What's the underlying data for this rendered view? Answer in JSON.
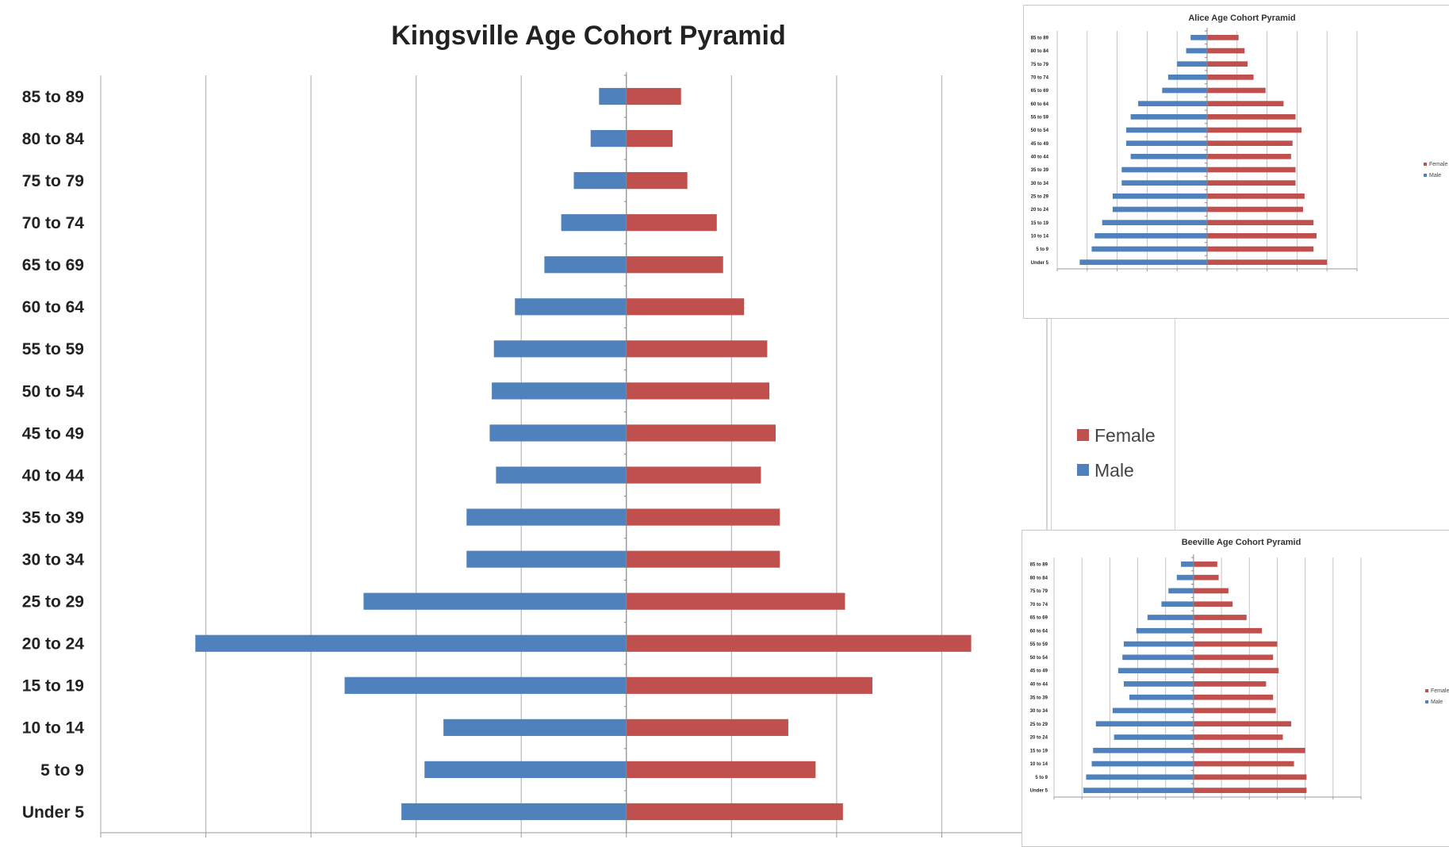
{
  "chart_data": [
    {
      "id": "kingsville",
      "type": "bar",
      "title": "Kingsville Age Cohort Pyramid",
      "categories": [
        "85 to 89",
        "80 to 84",
        "75 to 79",
        "70 to 74",
        "65 to 69",
        "60 to 64",
        "55 to 59",
        "50 to 54",
        "45 to 49",
        "40 to 44",
        "35 to 39",
        "30 to 34",
        "25 to 29",
        "20 to 24",
        "15 to 19",
        "10 to 14",
        "5 to 9",
        "Under 5"
      ],
      "series": [
        {
          "name": "Female",
          "color": "#c0504d",
          "values": [
            2.6,
            2.2,
            2.9,
            4.3,
            4.6,
            5.6,
            6.7,
            6.8,
            7.1,
            6.4,
            7.3,
            7.3,
            10.4,
            16.4,
            11.7,
            7.7,
            9.0,
            10.3
          ]
        },
        {
          "name": "Male",
          "color": "#4f81bd",
          "values": [
            -1.3,
            -1.7,
            -2.5,
            -3.1,
            -3.9,
            -5.3,
            -6.3,
            -6.4,
            -6.5,
            -6.2,
            -7.6,
            -7.6,
            -12.5,
            -20.5,
            -13.4,
            -8.7,
            -9.6,
            -10.7
          ]
        }
      ],
      "xlim": [
        -25,
        20
      ],
      "legend": "right",
      "grid": true
    },
    {
      "id": "alice",
      "type": "bar",
      "title": "Alice Age Cohort Pyramid",
      "categories": [
        "85 to 89",
        "80 to 84",
        "75 to 79",
        "70 to 74",
        "65 to 69",
        "60 to 64",
        "55 to 59",
        "50 to 54",
        "45 to 49",
        "40 to 44",
        "35 to 39",
        "30 to 34",
        "25 to 29",
        "20 to 24",
        "15 to 19",
        "10 to 14",
        "5 to 9",
        "Under 5"
      ],
      "series": [
        {
          "name": "Female",
          "color": "#c0504d",
          "values": [
            2.1,
            2.5,
            2.7,
            3.1,
            3.9,
            5.1,
            5.9,
            6.3,
            5.7,
            5.6,
            5.9,
            5.9,
            6.5,
            6.4,
            7.1,
            7.3,
            7.1,
            8.0
          ]
        },
        {
          "name": "Male",
          "color": "#4f81bd",
          "values": [
            -1.1,
            -1.4,
            -2.0,
            -2.6,
            -3.0,
            -4.6,
            -5.1,
            -5.4,
            -5.4,
            -5.1,
            -5.7,
            -5.7,
            -6.3,
            -6.3,
            -7.0,
            -7.5,
            -7.7,
            -8.5
          ]
        }
      ],
      "xlim": [
        -10,
        10
      ],
      "legend": "right",
      "grid": true
    },
    {
      "id": "beeville",
      "type": "bar",
      "title": "Beeville Age Cohort Pyramid",
      "categories": [
        "85 to 89",
        "80 to 84",
        "75 to 79",
        "70 to 74",
        "65 to 69",
        "60 to 64",
        "55 to 59",
        "50 to 54",
        "45 to 49",
        "40 to 44",
        "35 to 39",
        "30 to 34",
        "25 to 29",
        "20 to 24",
        "15 to 19",
        "10 to 14",
        "5 to 9",
        "Under 5"
      ],
      "series": [
        {
          "name": "Female",
          "color": "#c0504d",
          "values": [
            1.7,
            1.8,
            2.5,
            2.8,
            3.8,
            4.9,
            6.0,
            5.7,
            6.1,
            5.2,
            5.7,
            5.9,
            7.0,
            6.4,
            8.0,
            7.2,
            8.1,
            8.1
          ]
        },
        {
          "name": "Male",
          "color": "#4f81bd",
          "values": [
            -0.9,
            -1.2,
            -1.8,
            -2.3,
            -3.3,
            -4.1,
            -5.0,
            -5.1,
            -5.4,
            -5.0,
            -4.6,
            -5.8,
            -7.0,
            -5.7,
            -7.2,
            -7.3,
            -7.7,
            -7.9
          ]
        }
      ],
      "xlim": [
        -10,
        12
      ],
      "legend": "right",
      "grid": true
    }
  ]
}
